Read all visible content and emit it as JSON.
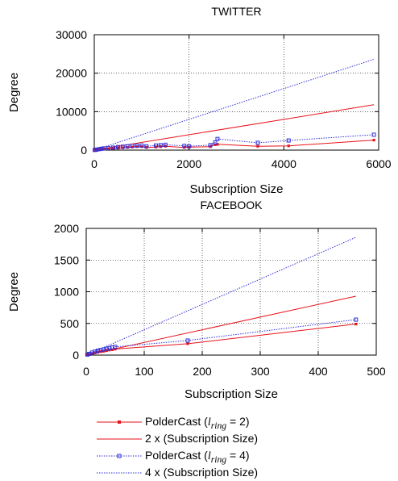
{
  "chart_data": [
    {
      "type": "line",
      "title": "TWITTER",
      "xlabel": "Subscription Size",
      "ylabel": "Degree",
      "xlim": [
        0,
        6000
      ],
      "ylim": [
        0,
        30000
      ],
      "xticks": [
        0,
        2000,
        4000,
        6000
      ],
      "yticks": [
        0,
        10000,
        20000,
        30000
      ],
      "xtick_labels": [
        "0",
        "2000",
        "4000",
        "6000"
      ],
      "ytick_labels": [
        "0",
        "10000",
        "20000",
        "30000"
      ],
      "grid": true,
      "series": [
        {
          "name": "PolderCast (lring = 2)",
          "color": "#e8121b",
          "style": "solid-markers",
          "x": [
            10,
            50,
            100,
            150,
            200,
            300,
            400,
            500,
            600,
            700,
            800,
            900,
            1000,
            1100,
            1300,
            1400,
            1500,
            1900,
            2000,
            2450,
            2550,
            2600,
            3450,
            4100,
            5900
          ],
          "y": [
            20,
            80,
            150,
            200,
            300,
            350,
            400,
            500,
            600,
            700,
            800,
            900,
            900,
            700,
            800,
            900,
            1000,
            700,
            800,
            900,
            1400,
            1500,
            1000,
            1100,
            2600
          ]
        },
        {
          "name": "2 x (Subscription Size)",
          "color": "#e8121b",
          "style": "solid",
          "x": [
            0,
            5900
          ],
          "y": [
            0,
            11800
          ]
        },
        {
          "name": "PolderCast (lring = 4)",
          "color": "#2f2fd8",
          "style": "dotted-markers",
          "x": [
            10,
            50,
            100,
            150,
            200,
            300,
            400,
            500,
            600,
            700,
            800,
            900,
            1000,
            1100,
            1300,
            1400,
            1500,
            1900,
            2000,
            2450,
            2550,
            2600,
            3450,
            4100,
            5900
          ],
          "y": [
            30,
            120,
            250,
            350,
            450,
            550,
            650,
            800,
            900,
            1000,
            1100,
            1150,
            1200,
            1000,
            1200,
            1300,
            1400,
            1100,
            1000,
            1300,
            2000,
            2900,
            1900,
            2500,
            4000
          ]
        },
        {
          "name": "4 x (Subscription Size)",
          "color": "#2f2fd8",
          "style": "dotted",
          "x": [
            0,
            5900
          ],
          "y": [
            0,
            23600
          ]
        }
      ]
    },
    {
      "type": "line",
      "title": "FACEBOOK",
      "xlabel": "Subscription Size",
      "ylabel": "Degree",
      "xlim": [
        0,
        500
      ],
      "ylim": [
        0,
        2000
      ],
      "xticks": [
        0,
        100,
        200,
        300,
        400,
        500
      ],
      "yticks": [
        0,
        500,
        1000,
        1500,
        2000
      ],
      "xtick_labels": [
        "0",
        "100",
        "200",
        "300",
        "400",
        "500"
      ],
      "ytick_labels": [
        "0",
        "500",
        "1000",
        "1500",
        "2000"
      ],
      "grid": true,
      "series": [
        {
          "name": "PolderCast (lring = 2)",
          "color": "#e8121b",
          "style": "solid-markers",
          "x": [
            2,
            5,
            10,
            15,
            20,
            25,
            30,
            35,
            40,
            45,
            50,
            175,
            465
          ],
          "y": [
            5,
            12,
            25,
            35,
            45,
            55,
            60,
            70,
            80,
            85,
            95,
            180,
            490
          ]
        },
        {
          "name": "2 x (Subscription Size)",
          "color": "#e8121b",
          "style": "solid",
          "x": [
            0,
            465
          ],
          "y": [
            0,
            930
          ]
        },
        {
          "name": "PolderCast (lring = 4)",
          "color": "#2f2fd8",
          "style": "dotted-markers",
          "x": [
            2,
            5,
            10,
            15,
            20,
            25,
            30,
            35,
            40,
            45,
            50,
            175,
            465
          ],
          "y": [
            8,
            20,
            40,
            55,
            70,
            80,
            90,
            100,
            110,
            120,
            130,
            230,
            560
          ]
        },
        {
          "name": "4 x (Subscription Size)",
          "color": "#2f2fd8",
          "style": "dotted",
          "x": [
            0,
            465
          ],
          "y": [
            0,
            1860
          ]
        }
      ]
    }
  ],
  "legend": {
    "placement": "bottom",
    "items": [
      {
        "label_main": "PolderCast (",
        "label_var": "l",
        "label_sub": "ring",
        "label_rest": " = 2)",
        "color": "#e8121b",
        "style": "solid-markers"
      },
      {
        "label_main": "2 x (Subscription Size)",
        "color": "#e8121b",
        "style": "solid"
      },
      {
        "label_main": "PolderCast (",
        "label_var": "l",
        "label_sub": "ring",
        "label_rest": " = 4)",
        "color": "#2f2fd8",
        "style": "dotted-markers"
      },
      {
        "label_main": "4 x (Subscription Size)",
        "color": "#2f2fd8",
        "style": "dotted"
      }
    ]
  }
}
